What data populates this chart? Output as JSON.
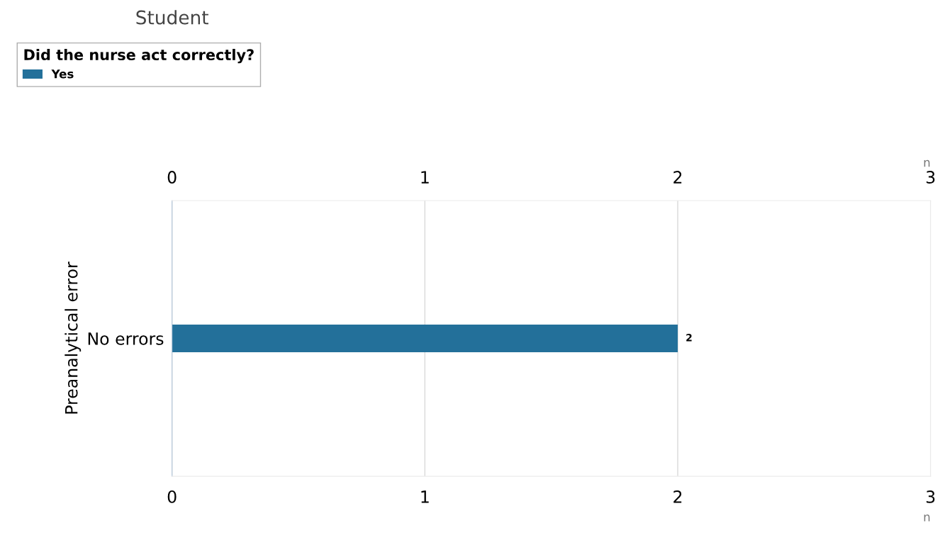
{
  "chart_data": {
    "type": "bar",
    "orientation": "horizontal",
    "title": "Student",
    "legend_title": "Did the nurse act correctly?",
    "ylabel": "Preanalytical error",
    "xlabel": "n",
    "x2label": "n",
    "categories": [
      "No errors"
    ],
    "series": [
      {
        "name": "Yes",
        "color": "#23709a",
        "values": [
          2
        ]
      }
    ],
    "xlim": [
      0,
      3
    ],
    "xticks": [
      0,
      1,
      2,
      3
    ],
    "x2lim": [
      0,
      3
    ],
    "x2ticks": [
      0,
      1,
      2,
      3
    ],
    "grid": "x",
    "legend": "top left",
    "data_labels": true
  }
}
